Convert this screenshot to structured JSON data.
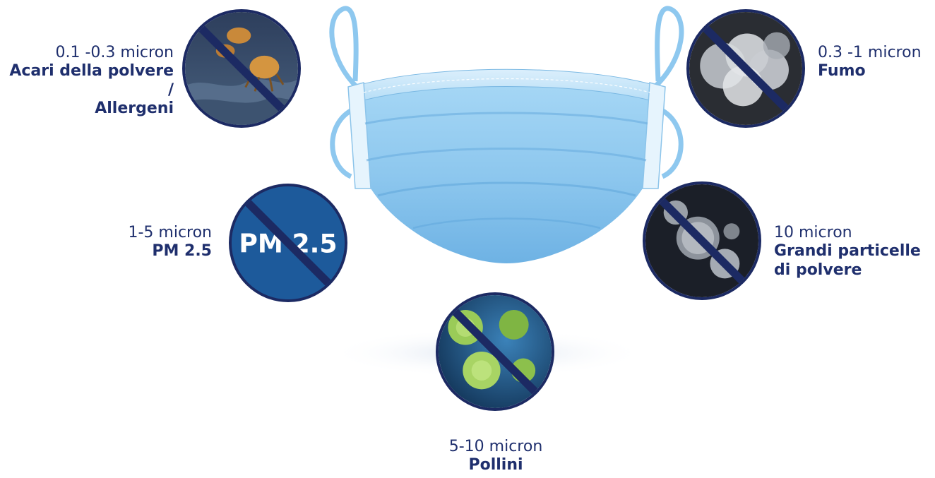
{
  "particles": [
    {
      "id": "dust-mites",
      "size": "0.1 -0.3 micron",
      "name_line1": "Acari della polvere /",
      "name_line2": "Allergeni"
    },
    {
      "id": "smoke",
      "size": "0.3 -1 micron",
      "name_line1": "Fumo",
      "name_line2": ""
    },
    {
      "id": "pm25",
      "size": "1-5 micron",
      "name_line1": "PM 2.5",
      "name_line2": "",
      "badge_text": "PM 2.5"
    },
    {
      "id": "large-dust",
      "size": "10 micron",
      "name_line1": "Grandi particelle",
      "name_line2": "di polvere"
    },
    {
      "id": "pollen",
      "size": "5-10 micron",
      "name_line1": "Pollini",
      "name_line2": ""
    }
  ],
  "colors": {
    "text": "#1f2f6d",
    "circle_border": "#1c2a63",
    "mask_light": "#a9d7f4",
    "mask_mid": "#7fbde9",
    "mask_dark": "#5aa5de",
    "pm_badge": "#1d5a9b"
  },
  "icons": {
    "dust-mites": "dust-mite-prohibited-icon",
    "smoke": "smoke-prohibited-icon",
    "pm25": "pm25-prohibited-icon",
    "large-dust": "dust-particle-prohibited-icon",
    "pollen": "pollen-prohibited-icon"
  }
}
